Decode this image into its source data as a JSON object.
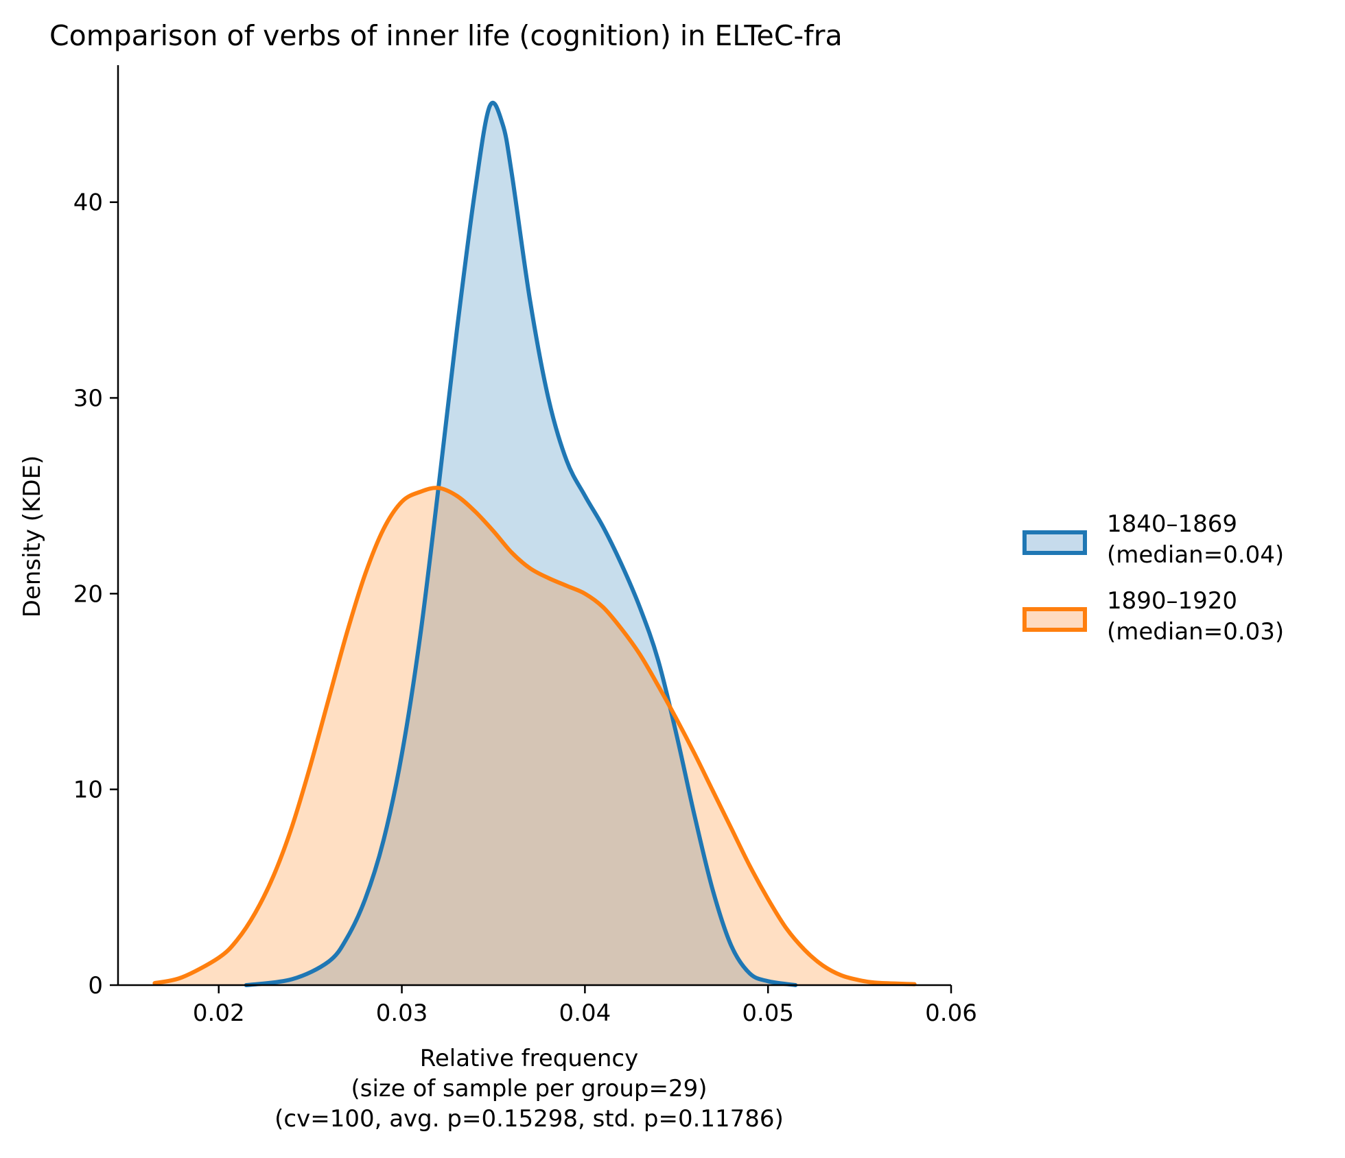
{
  "chart_data": {
    "type": "area",
    "title": "Comparison of verbs of inner life (cognition) in ELTeC-fra",
    "xlabel": [
      "Relative frequency",
      "(size of sample per group=29)",
      "(cv=100, avg. p=0.15298, std. p=0.11786)"
    ],
    "ylabel": "Density (KDE)",
    "xlim": [
      0.0145,
      0.06
    ],
    "ylim": [
      0,
      47
    ],
    "xticks": [
      0.02,
      0.03,
      0.04,
      0.05,
      0.06
    ],
    "xtick_labels": [
      "0.02",
      "0.03",
      "0.04",
      "0.05",
      "0.06"
    ],
    "yticks": [
      0,
      10,
      20,
      30,
      40
    ],
    "ytick_labels": [
      "0",
      "10",
      "20",
      "30",
      "40"
    ],
    "grid": false,
    "legend_position": "right",
    "series": [
      {
        "name": "1840–1869",
        "name_line2": "(median=0.04)",
        "color": "#1f77b4",
        "fill": "#c6dbec",
        "points": [
          [
            0.0215,
            0.0
          ],
          [
            0.024,
            0.3
          ],
          [
            0.026,
            1.2
          ],
          [
            0.027,
            2.4
          ],
          [
            0.028,
            4.4
          ],
          [
            0.029,
            7.4
          ],
          [
            0.03,
            11.8
          ],
          [
            0.031,
            17.8
          ],
          [
            0.032,
            25.4
          ],
          [
            0.033,
            33.4
          ],
          [
            0.034,
            40.6
          ],
          [
            0.0348,
            44.9
          ],
          [
            0.0355,
            44.0
          ],
          [
            0.036,
            41.5
          ],
          [
            0.037,
            35.0
          ],
          [
            0.038,
            30.0
          ],
          [
            0.039,
            26.8
          ],
          [
            0.04,
            25.0
          ],
          [
            0.041,
            23.4
          ],
          [
            0.042,
            21.5
          ],
          [
            0.043,
            19.3
          ],
          [
            0.044,
            16.6
          ],
          [
            0.045,
            12.8
          ],
          [
            0.046,
            8.6
          ],
          [
            0.047,
            4.8
          ],
          [
            0.048,
            2.0
          ],
          [
            0.049,
            0.6
          ],
          [
            0.05,
            0.2
          ],
          [
            0.0515,
            0.0
          ]
        ]
      },
      {
        "name": "1890–1920",
        "name_line2": "(median=0.03)",
        "color": "#ff7f0e",
        "fill": "#fedbc0",
        "points": [
          [
            0.0165,
            0.1
          ],
          [
            0.018,
            0.4
          ],
          [
            0.02,
            1.4
          ],
          [
            0.021,
            2.3
          ],
          [
            0.022,
            3.7
          ],
          [
            0.023,
            5.6
          ],
          [
            0.024,
            8.1
          ],
          [
            0.025,
            11.2
          ],
          [
            0.026,
            14.6
          ],
          [
            0.027,
            18.0
          ],
          [
            0.028,
            21.0
          ],
          [
            0.029,
            23.3
          ],
          [
            0.03,
            24.7
          ],
          [
            0.031,
            25.2
          ],
          [
            0.032,
            25.4
          ],
          [
            0.033,
            25.0
          ],
          [
            0.034,
            24.2
          ],
          [
            0.035,
            23.2
          ],
          [
            0.036,
            22.1
          ],
          [
            0.037,
            21.3
          ],
          [
            0.038,
            20.8
          ],
          [
            0.039,
            20.4
          ],
          [
            0.04,
            20.0
          ],
          [
            0.041,
            19.3
          ],
          [
            0.042,
            18.2
          ],
          [
            0.043,
            16.9
          ],
          [
            0.044,
            15.3
          ],
          [
            0.045,
            13.6
          ],
          [
            0.046,
            11.8
          ],
          [
            0.047,
            9.9
          ],
          [
            0.048,
            8.0
          ],
          [
            0.049,
            6.1
          ],
          [
            0.05,
            4.4
          ],
          [
            0.051,
            2.9
          ],
          [
            0.052,
            1.8
          ],
          [
            0.053,
            1.0
          ],
          [
            0.054,
            0.5
          ],
          [
            0.055,
            0.25
          ],
          [
            0.056,
            0.12
          ],
          [
            0.058,
            0.05
          ]
        ]
      }
    ]
  }
}
